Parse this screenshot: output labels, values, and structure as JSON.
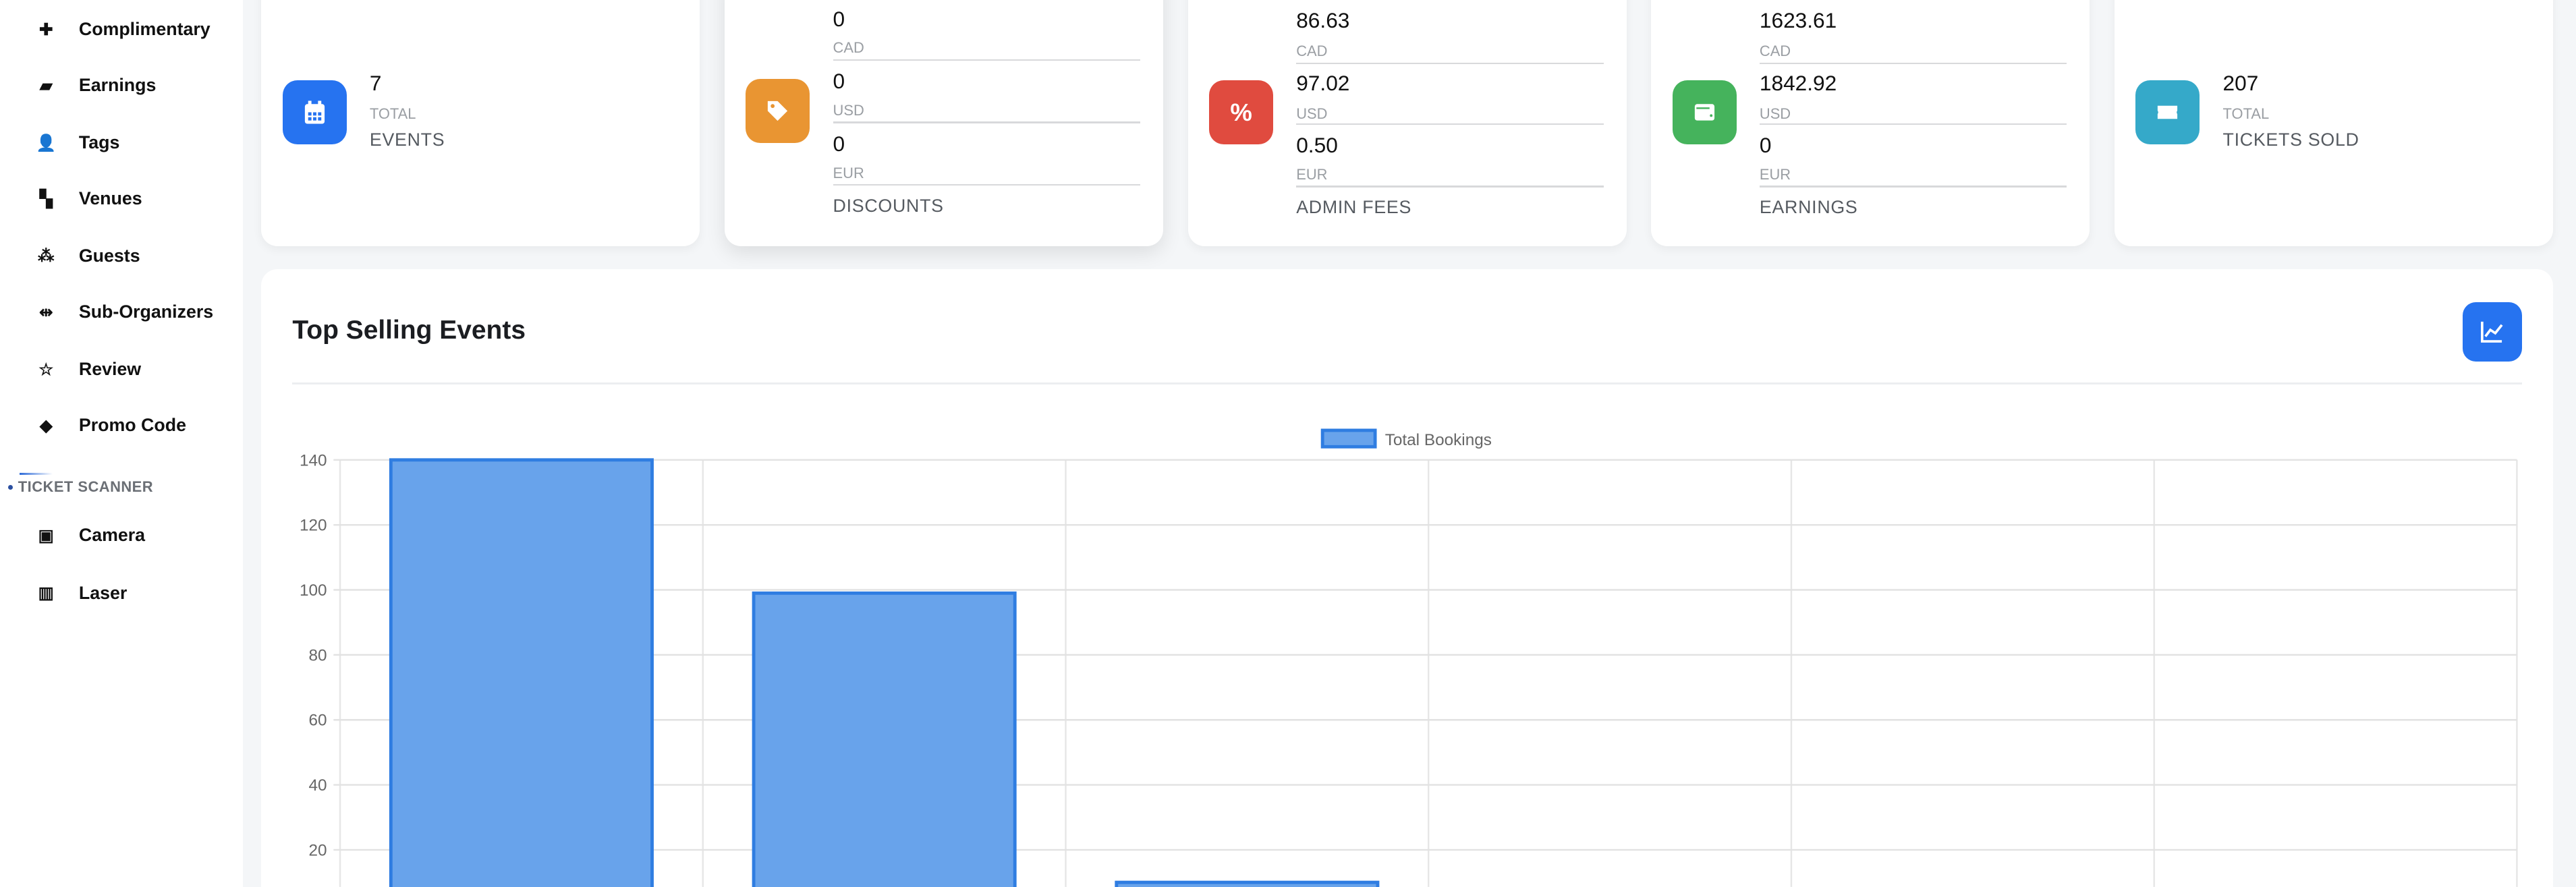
{
  "sidebar": {
    "items": [
      {
        "label": "Complimentary",
        "icon": "puzzle-icon"
      },
      {
        "label": "Earnings",
        "icon": "wallet-icon"
      },
      {
        "label": "Tags",
        "icon": "user-tag-icon"
      },
      {
        "label": "Venues",
        "icon": "map-icon"
      },
      {
        "label": "Guests",
        "icon": "people-group-icon"
      },
      {
        "label": "Sub-Organizers",
        "icon": "people-arrows-icon"
      },
      {
        "label": "Review",
        "icon": "star-icon"
      },
      {
        "label": "Promo Code",
        "icon": "tag-icon"
      }
    ],
    "section_title": "TICKET SCANNER",
    "scanner_items": [
      {
        "label": "Camera",
        "icon": "qrcode-icon"
      },
      {
        "label": "Laser",
        "icon": "barcode-icon"
      }
    ]
  },
  "cards": {
    "events": {
      "value": "7",
      "sub": "TOTAL",
      "label": "EVENTS",
      "color": "#2673f0"
    },
    "discounts": {
      "rows": [
        {
          "value": "0",
          "currency": "CAD"
        },
        {
          "value": "0",
          "currency": "USD"
        },
        {
          "value": "0",
          "currency": "EUR"
        }
      ],
      "label": "DISCOUNTS",
      "color": "#e99532"
    },
    "admin_fees": {
      "rows": [
        {
          "value": "86.63",
          "currency": "CAD"
        },
        {
          "value": "97.02",
          "currency": "USD"
        },
        {
          "value": "0.50",
          "currency": "EUR"
        }
      ],
      "label": "ADMIN FEES",
      "color": "#e04b3f"
    },
    "earnings": {
      "rows": [
        {
          "value": "1623.61",
          "currency": "CAD"
        },
        {
          "value": "1842.92",
          "currency": "USD"
        },
        {
          "value": "0",
          "currency": "EUR"
        }
      ],
      "label": "EARNINGS",
      "color": "#45b35c"
    },
    "tickets": {
      "value": "207",
      "sub": "TOTAL",
      "label": "TICKETS SOLD",
      "color": "#35a9c9"
    }
  },
  "panel": {
    "title": "Top Selling Events",
    "button_icon": "chart-line-icon"
  },
  "chart_data": {
    "type": "bar",
    "series": [
      {
        "name": "Total Bookings",
        "values": [
          140,
          99,
          10,
          null,
          null,
          null
        ]
      }
    ],
    "ylim": [
      0,
      140
    ],
    "yticks": [
      20,
      40,
      60,
      80,
      100,
      120,
      140
    ],
    "legend": "top",
    "grid": true,
    "color": "#68a3eb",
    "border_color": "#2f7de1"
  }
}
